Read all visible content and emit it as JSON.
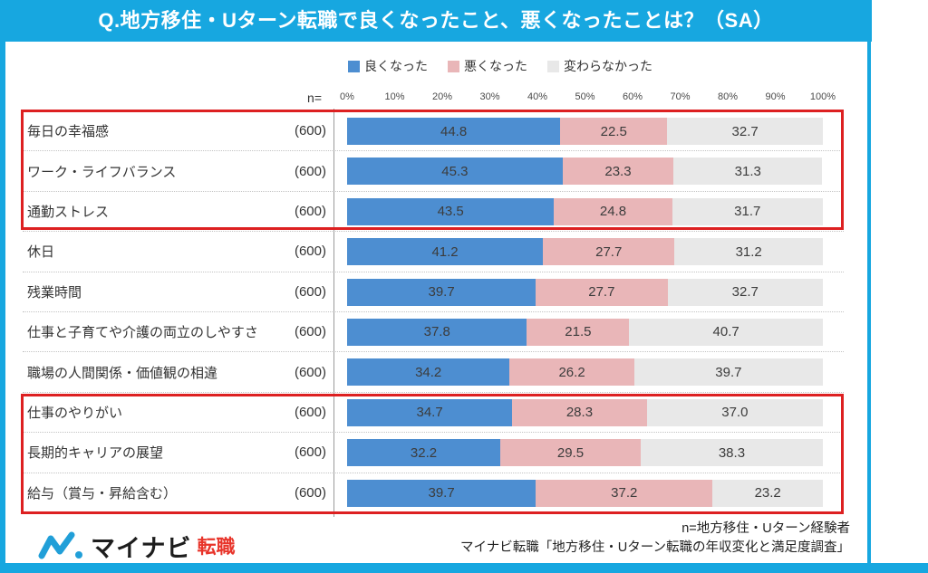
{
  "title": "Q.地方移住・Uターン転職で良くなったこと、悪くなったことは？（SA）",
  "colors": {
    "frame_accent": "#17a7e0",
    "highlight_red": "#dd2021",
    "better_blue": "#4d8ed1",
    "worse_pink": "#e9b6b8",
    "unchanged_gray": "#e8e8e8",
    "logo_wave_cyan": "#219fd8",
    "logo_suffix_red": "#e8342a"
  },
  "axis": {
    "n_label": "n=",
    "ticks": [
      "0%",
      "10%",
      "20%",
      "30%",
      "40%",
      "50%",
      "60%",
      "70%",
      "80%",
      "90%",
      "100%"
    ]
  },
  "chart_data": {
    "type": "bar",
    "stacked": true,
    "orientation": "horizontal",
    "title": "Q.地方移住・Uターン転職で良くなったこと、悪くなったことは？（SA）",
    "xlim": [
      0,
      100
    ],
    "x_ticks": [
      "0%",
      "10%",
      "20%",
      "30%",
      "40%",
      "50%",
      "60%",
      "70%",
      "80%",
      "90%",
      "100%"
    ],
    "n_display": "(600)",
    "n_per_category": 600,
    "categories": [
      "毎日の幸福感",
      "ワーク・ライフバランス",
      "通勤ストレス",
      "休日",
      "残業時間",
      "仕事と子育てや介護の両立のしやすさ",
      "職場の人間関係・価値観の相違",
      "仕事のやりがい",
      "長期的キャリアの展望",
      "給与（賞与・昇給含む）"
    ],
    "series": [
      {
        "key": "better",
        "name": "良くなった",
        "color": "#4d8ed1",
        "values": [
          44.8,
          45.3,
          43.5,
          41.2,
          39.7,
          37.8,
          34.2,
          34.7,
          32.2,
          39.7
        ]
      },
      {
        "key": "worse",
        "name": "悪くなった",
        "color": "#e9b6b8",
        "values": [
          22.5,
          23.3,
          24.8,
          27.7,
          27.7,
          21.5,
          26.2,
          28.3,
          29.5,
          37.2
        ]
      },
      {
        "key": "unchanged",
        "name": "変わらなかった",
        "color": "#e8e8e8",
        "values": [
          32.7,
          31.3,
          31.7,
          31.2,
          32.7,
          40.7,
          39.7,
          37.0,
          38.3,
          23.2
        ]
      }
    ],
    "highlight_boxes": [
      {
        "rows_zero_indexed": [
          0,
          2
        ]
      },
      {
        "rows_zero_indexed": [
          7,
          9
        ]
      }
    ]
  },
  "footer": {
    "logo": {
      "brand": "マイナビ",
      "suffix": "転職"
    },
    "note_line1": "n=地方移住・Uターン経験者",
    "note_line2": "マイナビ転職「地方移住・Uターン転職の年収変化と満足度調査」"
  }
}
